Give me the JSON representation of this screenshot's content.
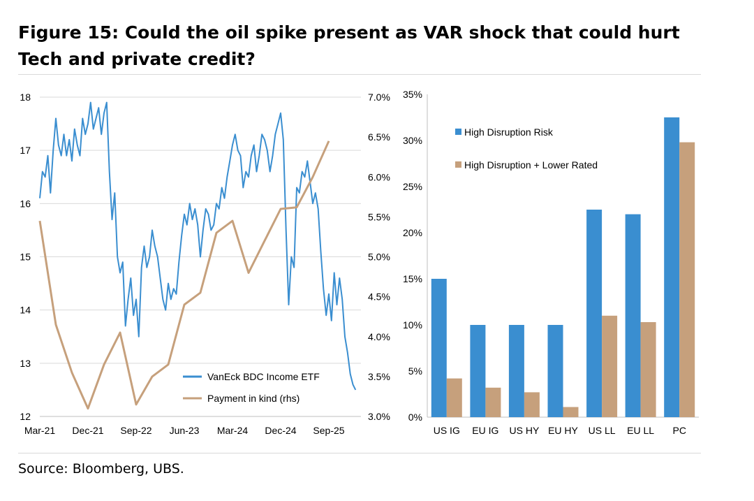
{
  "title": "Figure 15: Could the oil spike present as VAR shock that could hurt Tech and private credit?",
  "source": "Source: Bloomberg, UBS.",
  "colors": {
    "blue": "#3a8ed0",
    "tan": "#c6a07c",
    "grid": "#d9d9d9",
    "axis": "#bfbfbf"
  },
  "chart_data": [
    {
      "type": "line",
      "title": "",
      "xlabel": "",
      "ylabel": "",
      "x_ticks": [
        "Mar-21",
        "Dec-21",
        "Sep-22",
        "Jun-23",
        "Mar-24",
        "Dec-24",
        "Sep-25"
      ],
      "x_range": [
        0,
        60
      ],
      "x_tick_positions": [
        0,
        9,
        18,
        27,
        36,
        45,
        54
      ],
      "ylim_left": [
        12,
        18
      ],
      "yticks_left": [
        "12",
        "13",
        "14",
        "15",
        "16",
        "17",
        "18"
      ],
      "ylim_right": [
        3.0,
        7.0
      ],
      "yticks_right": [
        "3.0%",
        "3.5%",
        "4.0%",
        "4.5%",
        "5.0%",
        "5.5%",
        "6.0%",
        "6.5%",
        "7.0%"
      ],
      "grid": true,
      "legend": "bottom-center",
      "series": [
        {
          "name": "VanEck BDC Income ETF",
          "axis": "left",
          "x": [
            0,
            0.5,
            1,
            1.5,
            2,
            2.5,
            3,
            3.5,
            4,
            4.5,
            5,
            5.5,
            6,
            6.5,
            7,
            7.5,
            8,
            8.5,
            9,
            9.5,
            10,
            10.5,
            11,
            11.5,
            12,
            12.5,
            13,
            13.5,
            14,
            14.5,
            15,
            15.5,
            16,
            16.5,
            17,
            17.5,
            18,
            18.5,
            19,
            19.5,
            20,
            20.5,
            21,
            21.5,
            22,
            22.5,
            23,
            23.5,
            24,
            24.5,
            25,
            25.5,
            26,
            26.5,
            27,
            27.5,
            28,
            28.5,
            29,
            29.5,
            30,
            30.5,
            31,
            31.5,
            32,
            32.5,
            33,
            33.5,
            34,
            34.5,
            35,
            35.5,
            36,
            36.5,
            37,
            37.5,
            38,
            38.5,
            39,
            39.5,
            40,
            40.5,
            41,
            41.5,
            42,
            42.5,
            43,
            43.5,
            44,
            44.5,
            45,
            45.5,
            46,
            46.5,
            47,
            47.5,
            48,
            48.5,
            49,
            49.5,
            50,
            50.5,
            51,
            51.5,
            52,
            52.5,
            53,
            53.5,
            54,
            54.5,
            55,
            55.5,
            56,
            56.5,
            57,
            57.5,
            58,
            58.5,
            59
          ],
          "values": [
            16.1,
            16.6,
            16.5,
            16.9,
            16.2,
            17.0,
            17.6,
            17.1,
            16.9,
            17.3,
            16.9,
            17.2,
            16.8,
            17.4,
            17.1,
            16.9,
            17.6,
            17.3,
            17.5,
            17.9,
            17.4,
            17.6,
            17.8,
            17.3,
            17.7,
            17.9,
            16.6,
            15.7,
            16.2,
            15.0,
            14.7,
            14.9,
            13.7,
            14.2,
            14.6,
            13.9,
            14.2,
            13.5,
            14.8,
            15.2,
            14.8,
            15.0,
            15.5,
            15.2,
            15.0,
            14.6,
            14.2,
            14.0,
            14.5,
            14.2,
            14.4,
            14.3,
            14.9,
            15.4,
            15.8,
            15.6,
            16.0,
            15.7,
            15.9,
            15.6,
            15.0,
            15.5,
            15.9,
            15.8,
            15.5,
            15.6,
            16.0,
            15.9,
            16.3,
            16.1,
            16.5,
            16.8,
            17.1,
            17.3,
            17.0,
            16.9,
            16.3,
            16.6,
            16.5,
            16.9,
            17.1,
            16.6,
            16.9,
            17.3,
            17.2,
            17.0,
            16.6,
            16.9,
            17.3,
            17.5,
            17.7,
            17.2,
            15.5,
            14.1,
            15.0,
            14.8,
            16.3,
            16.2,
            16.6,
            16.5,
            16.8,
            16.4,
            16.0,
            16.2,
            15.9,
            15.1,
            14.4,
            13.9,
            14.3,
            13.8,
            14.7,
            14.1,
            14.6,
            14.2,
            13.5,
            13.2,
            12.8,
            12.6,
            12.5
          ]
        },
        {
          "name": "Payment in kind (rhs)",
          "axis": "right",
          "x": [
            0,
            3,
            6,
            9,
            12,
            15,
            18,
            21,
            24,
            27,
            30,
            33,
            36,
            39,
            42,
            45,
            48,
            51,
            54
          ],
          "values": [
            5.45,
            4.15,
            3.55,
            3.1,
            3.65,
            4.05,
            3.15,
            3.5,
            3.65,
            4.4,
            4.55,
            5.3,
            5.45,
            4.8,
            5.2,
            5.6,
            5.62,
            6.0,
            6.45
          ]
        }
      ]
    },
    {
      "type": "bar",
      "title": "",
      "xlabel": "",
      "ylabel": "",
      "categories": [
        "US IG",
        "EU IG",
        "US HY",
        "EU HY",
        "US LL",
        "EU LL",
        "PC"
      ],
      "ylim": [
        0,
        35
      ],
      "yticks": [
        "0%",
        "5%",
        "10%",
        "15%",
        "20%",
        "25%",
        "30%",
        "35%"
      ],
      "legend": "top-left",
      "series": [
        {
          "name": "High Disruption Risk",
          "values": [
            15,
            10,
            10,
            10,
            22.5,
            22,
            32.5
          ]
        },
        {
          "name": "High Disruption + Lower Rated",
          "values": [
            4.2,
            3.2,
            2.7,
            1.1,
            11,
            10.3,
            29.8
          ]
        }
      ]
    }
  ]
}
